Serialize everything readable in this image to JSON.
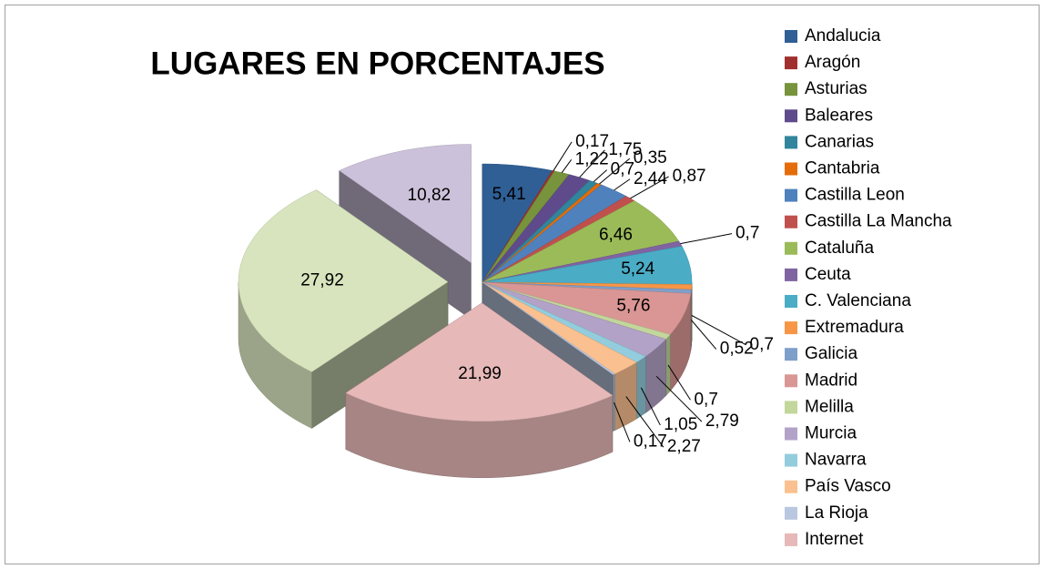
{
  "chart_data": {
    "type": "pie3d",
    "title": "LUGARES EN PORCENTAJES",
    "categories": [
      "Andalucia",
      "Aragón",
      "Asturias",
      "Baleares",
      "Canarias",
      "Cantabria",
      "Castilla Leon",
      "Castilla La Mancha",
      "Cataluña",
      "Ceuta",
      "C. Valenciana",
      "Extremadura",
      "Galicia",
      "Madrid",
      "Melilla",
      "Murcia",
      "Navarra",
      "País Vasco",
      "La Rioja",
      "Internet",
      null,
      null
    ],
    "values": [
      5.41,
      0.17,
      1.22,
      1.75,
      0.7,
      0.35,
      2.44,
      0.87,
      6.46,
      0.7,
      5.24,
      0.7,
      0.52,
      5.76,
      0.7,
      2.79,
      1.05,
      2.27,
      0.17,
      21.99,
      27.92,
      10.82
    ],
    "value_labels": [
      "5,41",
      "0,17",
      "1,22",
      "1,75",
      "0,7",
      "0,35",
      "2,44",
      "0,87",
      "6,46",
      "0,7",
      "5,24",
      "0,7",
      "0,52",
      "5,76",
      "0,7",
      "2,79",
      "1,05",
      "2,27",
      "0,17",
      "21,99",
      "27,92",
      "10,82"
    ],
    "colors": [
      "#2F5F95",
      "#A0302E",
      "#77933C",
      "#5F4B8B",
      "#31859C",
      "#E46C0A",
      "#4F81BD",
      "#C0504D",
      "#9BBB59",
      "#8064A2",
      "#4BACC6",
      "#F79646",
      "#7F9FCB",
      "#D99694",
      "#C3D69B",
      "#B3A2C7",
      "#93CDDD",
      "#FAC090",
      "#B9C7E0",
      "#E6B9B8",
      "#D7E4BD",
      "#CCC1DA"
    ],
    "legend": "right"
  }
}
